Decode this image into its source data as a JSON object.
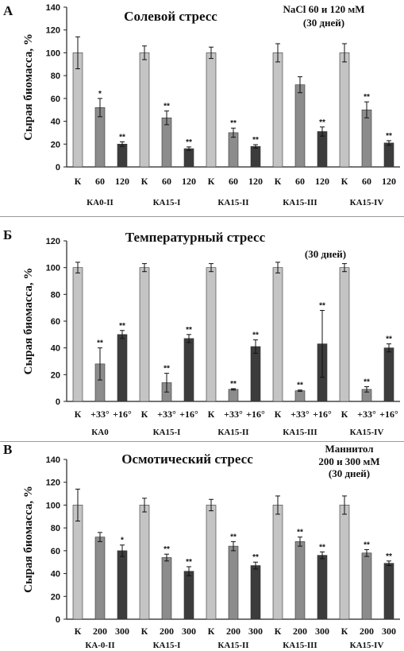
{
  "chart_data": [
    {
      "type": "bar",
      "panel_letter": "А",
      "title": "Солевой стресс",
      "note_lines": [
        "NaCl 60 и 120 мМ",
        "(30 дней)"
      ],
      "ylabel": "Сырая биомасса, %",
      "ylim": [
        0,
        140
      ],
      "yticks": [
        "0",
        "20",
        "40",
        "60",
        "80",
        "100",
        "120",
        "140"
      ],
      "bar_labels": [
        "К",
        "60",
        "120"
      ],
      "bar_colors": [
        "#c4c4c4",
        "#8c8c8c",
        "#3c3c3c"
      ],
      "groups": [
        {
          "name": "КА0-II",
          "values": [
            100,
            52,
            20
          ],
          "errors": [
            14,
            8,
            2
          ],
          "marks": [
            "",
            "*",
            "**"
          ]
        },
        {
          "name": "КА15-I",
          "values": [
            100,
            43,
            16
          ],
          "errors": [
            6,
            6,
            1.5
          ],
          "marks": [
            "",
            "**",
            "**"
          ]
        },
        {
          "name": "КА15-II",
          "values": [
            100,
            30,
            18
          ],
          "errors": [
            5,
            4,
            1.5
          ],
          "marks": [
            "",
            "**",
            "**"
          ]
        },
        {
          "name": "КА15-III",
          "values": [
            100,
            72,
            31
          ],
          "errors": [
            8,
            7,
            4
          ],
          "marks": [
            "",
            "",
            "**"
          ]
        },
        {
          "name": "КА15-IV",
          "values": [
            100,
            50,
            21
          ],
          "errors": [
            8,
            7,
            2
          ],
          "marks": [
            "",
            "**",
            "**"
          ]
        }
      ]
    },
    {
      "type": "bar",
      "panel_letter": "Б",
      "title": "Температурный стресс",
      "note_lines": [
        "(30 дней)"
      ],
      "ylabel": "Сырая биомасса, %",
      "ylim": [
        0,
        120
      ],
      "yticks": [
        "0",
        "20",
        "40",
        "60",
        "80",
        "100",
        "120"
      ],
      "bar_labels": [
        "К",
        "+33°",
        "+16°"
      ],
      "bar_colors": [
        "#c4c4c4",
        "#8c8c8c",
        "#3c3c3c"
      ],
      "groups": [
        {
          "name": "КА0",
          "values": [
            100,
            28,
            50
          ],
          "errors": [
            4,
            12,
            3
          ],
          "marks": [
            "",
            "**",
            "**"
          ]
        },
        {
          "name": "КА15-I",
          "values": [
            100,
            14,
            47
          ],
          "errors": [
            3,
            7,
            3
          ],
          "marks": [
            "",
            "**",
            "**"
          ]
        },
        {
          "name": "КА15-II",
          "values": [
            100,
            9,
            41
          ],
          "errors": [
            3,
            0.5,
            5
          ],
          "marks": [
            "",
            "**",
            "**"
          ]
        },
        {
          "name": "КА15-III",
          "values": [
            100,
            8,
            43
          ],
          "errors": [
            4,
            0.5,
            25
          ],
          "marks": [
            "",
            "**",
            "**"
          ]
        },
        {
          "name": "КА15-IV",
          "values": [
            100,
            9,
            40
          ],
          "errors": [
            3,
            2,
            3
          ],
          "marks": [
            "",
            "**",
            "**"
          ]
        }
      ]
    },
    {
      "type": "bar",
      "panel_letter": "В",
      "title": "Осмотический стресс",
      "note_lines": [
        "Маннитол",
        "200 и 300 мМ",
        "(30 дней)"
      ],
      "ylabel": "Сырая биомасса, %",
      "ylim": [
        0,
        140
      ],
      "yticks": [
        "0",
        "20",
        "40",
        "60",
        "80",
        "100",
        "120",
        "140"
      ],
      "bar_labels": [
        "К",
        "200",
        "300"
      ],
      "bar_colors": [
        "#c4c4c4",
        "#8c8c8c",
        "#3c3c3c"
      ],
      "groups": [
        {
          "name": "КА-0-II",
          "values": [
            100,
            72,
            60
          ],
          "errors": [
            14,
            4,
            5
          ],
          "marks": [
            "",
            "",
            "*"
          ]
        },
        {
          "name": "КА15-I",
          "values": [
            100,
            54,
            42
          ],
          "errors": [
            6,
            3,
            4
          ],
          "marks": [
            "",
            "**",
            "**"
          ]
        },
        {
          "name": "КА15-II",
          "values": [
            100,
            64,
            47
          ],
          "errors": [
            5,
            4,
            3
          ],
          "marks": [
            "",
            "**",
            "**"
          ]
        },
        {
          "name": "КА15-III",
          "values": [
            100,
            68,
            56
          ],
          "errors": [
            8,
            4,
            3
          ],
          "marks": [
            "",
            "**",
            "**"
          ]
        },
        {
          "name": "КА15-IV",
          "values": [
            100,
            58,
            49
          ],
          "errors": [
            8,
            3,
            2
          ],
          "marks": [
            "",
            "**",
            "**"
          ]
        }
      ]
    }
  ]
}
